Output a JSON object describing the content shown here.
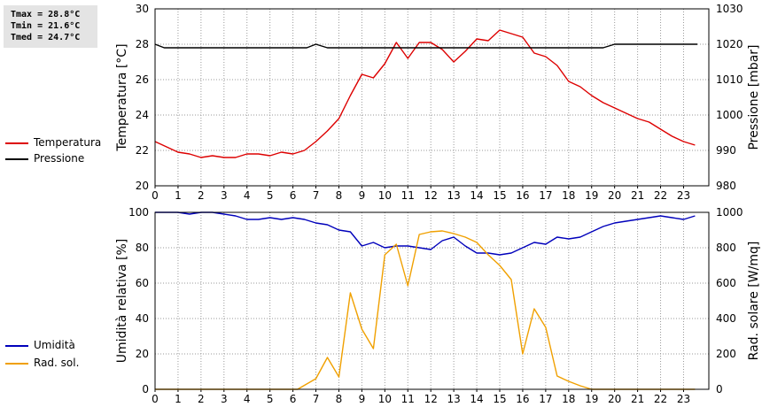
{
  "stats": {
    "tmax": "Tmax = 28.8°C",
    "tmin": "Tmin = 21.6°C",
    "tmed": "Tmed = 24.7°C"
  },
  "colors": {
    "temperature": "#dd0000",
    "pressure": "#000000",
    "humidity": "#0000bb",
    "solar": "#f0a000",
    "grid": "#9a9a9a"
  },
  "chart_data": [
    {
      "type": "line",
      "x_ticks": [
        "0",
        "1",
        "2",
        "3",
        "4",
        "5",
        "6",
        "7",
        "8",
        "9",
        "10",
        "11",
        "12",
        "13",
        "14",
        "15",
        "16",
        "17",
        "18",
        "19",
        "20",
        "21",
        "22",
        "23"
      ],
      "ylabel": "Temperatura [°C]",
      "y2label": "Pressione [mbar]",
      "ylim": [
        20,
        30
      ],
      "y2lim": [
        980,
        1030
      ],
      "yticks": [
        "20",
        "22",
        "24",
        "26",
        "28",
        "30"
      ],
      "y2ticks": [
        "980",
        "990",
        "1000",
        "1010",
        "1020",
        "1030"
      ],
      "grid": true,
      "legend_position": "left",
      "series": [
        {
          "name": "Temperatura",
          "axis": "left",
          "x": [
            0,
            0.5,
            1,
            1.5,
            2,
            2.5,
            3,
            3.5,
            4,
            4.5,
            5,
            5.5,
            6,
            6.5,
            7,
            7.5,
            8,
            8.5,
            9,
            9.5,
            10,
            10.5,
            11,
            11.5,
            12,
            12.5,
            13,
            13.5,
            14,
            14.5,
            15,
            15.5,
            16,
            16.5,
            17,
            17.5,
            18,
            18.5,
            19,
            19.5,
            20,
            20.5,
            21,
            21.5,
            22,
            22.5,
            23,
            23.5
          ],
          "y": [
            22.5,
            22.2,
            21.9,
            21.8,
            21.6,
            21.7,
            21.6,
            21.6,
            21.8,
            21.8,
            21.7,
            21.9,
            21.8,
            22.0,
            22.5,
            23.1,
            23.8,
            25.1,
            26.3,
            26.1,
            26.9,
            28.1,
            27.2,
            28.1,
            28.1,
            27.7,
            27.0,
            27.6,
            28.3,
            28.2,
            28.8,
            28.6,
            28.4,
            27.5,
            27.3,
            26.8,
            25.9,
            25.6,
            25.1,
            24.7,
            24.4,
            24.1,
            23.8,
            23.6,
            23.2,
            22.8,
            22.5,
            22.3
          ]
        },
        {
          "name": "Pressione",
          "axis": "right",
          "x": [
            0,
            0.4,
            1,
            2,
            3,
            4,
            5,
            6,
            6.6,
            7,
            7.5,
            8,
            9,
            10,
            11,
            12,
            13,
            14,
            15,
            16,
            17,
            18,
            19,
            19.5,
            20,
            21,
            22,
            23,
            23.6
          ],
          "y": [
            1020,
            1019,
            1019,
            1019,
            1019,
            1019,
            1019,
            1019,
            1019,
            1020,
            1019,
            1019,
            1019,
            1019,
            1019,
            1019,
            1019,
            1019,
            1019,
            1019,
            1019,
            1019,
            1019,
            1019,
            1020,
            1020,
            1020,
            1020,
            1020
          ]
        }
      ]
    },
    {
      "type": "line",
      "x_ticks": [
        "0",
        "1",
        "2",
        "3",
        "4",
        "5",
        "6",
        "7",
        "8",
        "9",
        "10",
        "11",
        "12",
        "13",
        "14",
        "15",
        "16",
        "17",
        "18",
        "19",
        "20",
        "21",
        "22",
        "23"
      ],
      "ylabel": "Umidità relativa [%]",
      "y2label": "Rad. solare [W/mq]",
      "ylim": [
        0,
        100
      ],
      "y2lim": [
        0,
        1000
      ],
      "yticks": [
        "0",
        "20",
        "40",
        "60",
        "80",
        "100"
      ],
      "y2ticks": [
        "0",
        "200",
        "400",
        "600",
        "800",
        "1000"
      ],
      "grid": true,
      "legend_position": "left",
      "series": [
        {
          "name": "Umidità",
          "axis": "left",
          "x": [
            0,
            0.5,
            1,
            1.5,
            2,
            2.5,
            3,
            3.5,
            4,
            4.5,
            5,
            5.5,
            6,
            6.5,
            7,
            7.5,
            8,
            8.5,
            9,
            9.5,
            10,
            10.5,
            11,
            11.5,
            12,
            12.5,
            13,
            13.5,
            14,
            14.5,
            15,
            15.5,
            16,
            16.5,
            17,
            17.5,
            18,
            18.5,
            19,
            19.5,
            20,
            20.5,
            21,
            21.5,
            22,
            22.5,
            23,
            23.5
          ],
          "y": [
            100,
            100,
            100,
            99,
            100,
            100,
            99,
            98,
            96,
            96,
            97,
            96,
            97,
            96,
            94,
            93,
            90,
            89,
            81,
            83,
            80,
            81,
            81,
            80,
            79,
            84,
            86,
            81,
            77,
            77,
            76,
            77,
            80,
            83,
            82,
            86,
            85,
            86,
            89,
            92,
            94,
            95,
            96,
            97,
            98,
            97,
            96,
            98
          ]
        },
        {
          "name": "Rad. sol.",
          "axis": "right",
          "x": [
            0,
            1,
            2,
            3,
            4,
            5,
            6,
            6.2,
            7,
            7.5,
            8,
            8.5,
            9,
            9.5,
            10,
            10.5,
            11,
            11.5,
            12,
            12.5,
            13,
            13.5,
            14,
            14.5,
            15,
            15.5,
            16,
            16.5,
            17,
            17.5,
            18,
            18.5,
            19,
            20,
            21,
            22,
            23,
            23.5
          ],
          "y": [
            0,
            0,
            0,
            0,
            0,
            0,
            0,
            0,
            60,
            180,
            70,
            545,
            340,
            230,
            760,
            820,
            585,
            875,
            890,
            895,
            880,
            860,
            830,
            760,
            700,
            620,
            200,
            455,
            350,
            75,
            45,
            20,
            0,
            0,
            0,
            0,
            0,
            0
          ]
        }
      ]
    }
  ]
}
